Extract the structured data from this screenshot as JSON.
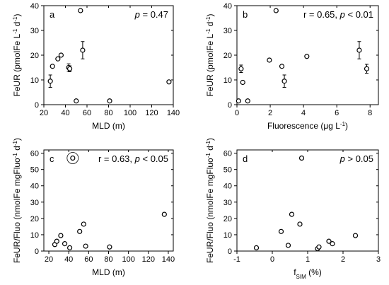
{
  "chart_data": [
    {
      "type": "scatter",
      "panel_label": "a",
      "annotation": {
        "prefix": "",
        "italic": "p",
        "suffix": " = 0.47"
      },
      "xlabel": "MLD (m)",
      "ylabel": {
        "main": "FeUR (pmolFe L",
        "sup1": "-1",
        "mid": " d",
        "sup2": "-1",
        "end": ")"
      },
      "xlim": [
        20,
        140
      ],
      "ylim": [
        0,
        40
      ],
      "xticks": [
        20,
        40,
        60,
        80,
        100,
        120,
        140
      ],
      "yticks": [
        0,
        10,
        20,
        30,
        40
      ],
      "x": [
        26,
        28,
        33,
        36,
        43,
        44,
        50,
        54,
        56,
        81,
        136
      ],
      "y": [
        9.5,
        15.5,
        18.5,
        20,
        15,
        14.5,
        1.5,
        38,
        22,
        1.5,
        9.2
      ],
      "err": [
        2.5,
        0,
        0,
        0,
        1.5,
        1.2,
        0,
        0,
        3.5,
        0,
        0
      ],
      "highlight": []
    },
    {
      "type": "scatter",
      "panel_label": "b",
      "annotation": {
        "prefix": "r = 0.65, ",
        "italic": "p",
        "suffix": " < 0.01"
      },
      "xlabel": "Fluorescence (μg L",
      "xlabel_sup": "-1",
      "xlabel_end": ")",
      "ylabel": {
        "main": "FeUR (pmolFe L",
        "sup1": "-1",
        "mid": " d",
        "sup2": "-1",
        "end": ")"
      },
      "xlim": [
        0,
        8.5
      ],
      "ylim": [
        0,
        40
      ],
      "xticks": [
        0,
        2,
        4,
        6,
        8
      ],
      "yticks": [
        0,
        10,
        20,
        30,
        40
      ],
      "x": [
        0.1,
        0.25,
        0.35,
        0.65,
        1.95,
        2.35,
        2.7,
        2.85,
        4.2,
        7.35,
        7.8
      ],
      "y": [
        1.5,
        14.5,
        9,
        1.5,
        18,
        38,
        15.5,
        9.5,
        19.5,
        22,
        14.5
      ],
      "err": [
        0,
        1.5,
        0,
        0,
        0,
        0,
        0,
        2.5,
        0.6,
        3.5,
        1.8
      ],
      "highlight": []
    },
    {
      "type": "scatter",
      "panel_label": "c",
      "annotation": {
        "prefix": "r = 0.63, ",
        "italic": "p",
        "suffix": " < 0.05"
      },
      "xlabel": "MLD (m)",
      "ylabel": {
        "main": "FeUR/Fluo (nmolFe mgFluo",
        "sup1": "-1",
        "mid": " d",
        "sup2": "-1",
        "end": ")"
      },
      "xlim": [
        15,
        145
      ],
      "ylim": [
        0,
        62
      ],
      "xticks": [
        20,
        40,
        60,
        80,
        100,
        120,
        140
      ],
      "yticks": [
        0,
        10,
        20,
        30,
        40,
        50,
        60
      ],
      "x": [
        26,
        28,
        32,
        36,
        41,
        44,
        51,
        55,
        57,
        81,
        136
      ],
      "y": [
        4,
        6,
        9.5,
        4.5,
        2,
        57,
        12,
        16.5,
        3,
        2.5,
        22.5
      ],
      "err": [
        0,
        0,
        0,
        0,
        0,
        0,
        0,
        0,
        0,
        0,
        0
      ],
      "highlight": [
        5
      ]
    },
    {
      "type": "scatter",
      "panel_label": "d",
      "annotation": {
        "prefix": "",
        "italic": "p",
        "suffix": " > 0.05"
      },
      "xlabel": "f",
      "xlabel_sub": "SIM",
      "xlabel_end": " (%)",
      "ylabel": {
        "main": "FeUR/Fluo (nmolFe mgFluo",
        "sup1": "-1",
        "mid": " d",
        "sup2": "-1",
        "end": ")"
      },
      "xlim": [
        -1,
        3
      ],
      "ylim": [
        0,
        62
      ],
      "xticks": [
        -1,
        0,
        1,
        2,
        3
      ],
      "yticks": [
        0,
        10,
        20,
        30,
        40,
        50,
        60
      ],
      "x": [
        -0.45,
        0.25,
        0.45,
        0.55,
        0.78,
        0.83,
        1.28,
        1.32,
        1.6,
        1.7,
        2.35
      ],
      "y": [
        2,
        12,
        3.5,
        22.5,
        16.5,
        57,
        1.5,
        2.5,
        6,
        4.5,
        9.5
      ],
      "err": [
        0,
        0,
        0,
        0,
        0,
        0,
        0,
        0,
        0,
        0,
        0
      ],
      "highlight": []
    }
  ]
}
